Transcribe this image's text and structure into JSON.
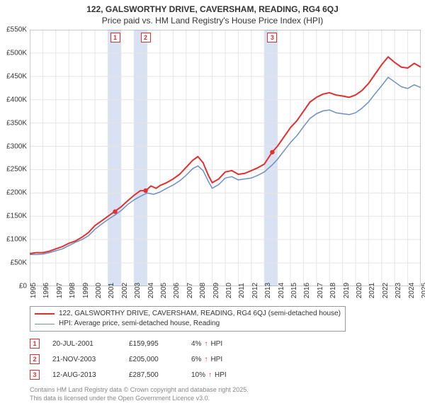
{
  "chart": {
    "type": "line",
    "title_line1": "122, GALSWORTHY DRIVE, CAVERSHAM, READING, RG4 6QJ",
    "title_line2": "Price paid vs. HM Land Registry's House Price Index (HPI)",
    "title_fontsize": 12,
    "background_color": "#ffffff",
    "grid_color": "#e5e5e5",
    "highlight_band_color": "#d9e2f2",
    "axis_text_color": "#333333",
    "y": {
      "min": 0,
      "max": 550000,
      "step": 50000,
      "labels": [
        "£0",
        "£50K",
        "£100K",
        "£150K",
        "£200K",
        "£250K",
        "£300K",
        "£350K",
        "£400K",
        "£450K",
        "£500K",
        "£550K"
      ]
    },
    "x": {
      "min": 1995,
      "max": 2025,
      "labels": [
        "1995",
        "1996",
        "1997",
        "1998",
        "1999",
        "2000",
        "2001",
        "2002",
        "2003",
        "2004",
        "2005",
        "2006",
        "2007",
        "2008",
        "2009",
        "2010",
        "2011",
        "2012",
        "2013",
        "2014",
        "2015",
        "2016",
        "2017",
        "2018",
        "2019",
        "2020",
        "2021",
        "2022",
        "2023",
        "2024",
        "2025"
      ]
    },
    "highlight_years": [
      2001,
      2003,
      2013
    ],
    "series": [
      {
        "name": "122, GALSWORTHY DRIVE, CAVERSHAM, READING, RG4 6QJ (semi-detached house)",
        "color": "#e03030",
        "line_width": 2,
        "points": [
          [
            1995.0,
            70000
          ],
          [
            1995.5,
            72000
          ],
          [
            1996.0,
            72000
          ],
          [
            1996.5,
            75000
          ],
          [
            1997.0,
            80000
          ],
          [
            1997.5,
            85000
          ],
          [
            1998.0,
            92000
          ],
          [
            1998.5,
            97000
          ],
          [
            1999.0,
            105000
          ],
          [
            1999.5,
            115000
          ],
          [
            2000.0,
            130000
          ],
          [
            2000.5,
            140000
          ],
          [
            2001.0,
            150000
          ],
          [
            2001.5,
            160000
          ],
          [
            2002.0,
            170000
          ],
          [
            2002.5,
            183000
          ],
          [
            2003.0,
            195000
          ],
          [
            2003.5,
            205000
          ],
          [
            2003.9,
            205000
          ],
          [
            2004.3,
            215000
          ],
          [
            2004.7,
            210000
          ],
          [
            2005.0,
            216000
          ],
          [
            2005.5,
            222000
          ],
          [
            2006.0,
            230000
          ],
          [
            2006.5,
            240000
          ],
          [
            2007.0,
            255000
          ],
          [
            2007.5,
            270000
          ],
          [
            2007.9,
            278000
          ],
          [
            2008.3,
            265000
          ],
          [
            2008.7,
            238000
          ],
          [
            2009.0,
            222000
          ],
          [
            2009.5,
            230000
          ],
          [
            2010.0,
            245000
          ],
          [
            2010.5,
            248000
          ],
          [
            2011.0,
            240000
          ],
          [
            2011.5,
            242000
          ],
          [
            2012.0,
            248000
          ],
          [
            2012.5,
            254000
          ],
          [
            2013.0,
            262000
          ],
          [
            2013.6,
            287500
          ],
          [
            2014.0,
            300000
          ],
          [
            2014.5,
            320000
          ],
          [
            2015.0,
            340000
          ],
          [
            2015.5,
            355000
          ],
          [
            2016.0,
            375000
          ],
          [
            2016.5,
            395000
          ],
          [
            2017.0,
            405000
          ],
          [
            2017.5,
            412000
          ],
          [
            2018.0,
            415000
          ],
          [
            2018.5,
            410000
          ],
          [
            2019.0,
            408000
          ],
          [
            2019.5,
            405000
          ],
          [
            2020.0,
            410000
          ],
          [
            2020.5,
            420000
          ],
          [
            2021.0,
            435000
          ],
          [
            2021.5,
            455000
          ],
          [
            2022.0,
            475000
          ],
          [
            2022.5,
            492000
          ],
          [
            2023.0,
            480000
          ],
          [
            2023.5,
            470000
          ],
          [
            2024.0,
            468000
          ],
          [
            2024.5,
            478000
          ],
          [
            2025.0,
            470000
          ]
        ]
      },
      {
        "name": "HPI: Average price, semi-detached house, Reading",
        "color": "#6b8fc7",
        "line_width": 1.5,
        "points": [
          [
            1995.0,
            68000
          ],
          [
            1995.5,
            68000
          ],
          [
            1996.0,
            69000
          ],
          [
            1996.5,
            72000
          ],
          [
            1997.0,
            76000
          ],
          [
            1997.5,
            80000
          ],
          [
            1998.0,
            87000
          ],
          [
            1998.5,
            94000
          ],
          [
            1999.0,
            100000
          ],
          [
            1999.5,
            108000
          ],
          [
            2000.0,
            122000
          ],
          [
            2000.5,
            133000
          ],
          [
            2001.0,
            143000
          ],
          [
            2001.5,
            152000
          ],
          [
            2002.0,
            162000
          ],
          [
            2002.5,
            175000
          ],
          [
            2003.0,
            185000
          ],
          [
            2003.5,
            193000
          ],
          [
            2004.0,
            200000
          ],
          [
            2004.5,
            197000
          ],
          [
            2005.0,
            202000
          ],
          [
            2005.5,
            210000
          ],
          [
            2006.0,
            217000
          ],
          [
            2006.5,
            226000
          ],
          [
            2007.0,
            238000
          ],
          [
            2007.5,
            252000
          ],
          [
            2007.9,
            258000
          ],
          [
            2008.3,
            248000
          ],
          [
            2008.7,
            225000
          ],
          [
            2009.0,
            210000
          ],
          [
            2009.5,
            218000
          ],
          [
            2010.0,
            232000
          ],
          [
            2010.5,
            235000
          ],
          [
            2011.0,
            228000
          ],
          [
            2011.5,
            230000
          ],
          [
            2012.0,
            232000
          ],
          [
            2012.5,
            238000
          ],
          [
            2013.0,
            245000
          ],
          [
            2013.6,
            260000
          ],
          [
            2014.0,
            272000
          ],
          [
            2014.5,
            290000
          ],
          [
            2015.0,
            308000
          ],
          [
            2015.5,
            323000
          ],
          [
            2016.0,
            342000
          ],
          [
            2016.5,
            360000
          ],
          [
            2017.0,
            370000
          ],
          [
            2017.5,
            376000
          ],
          [
            2018.0,
            378000
          ],
          [
            2018.5,
            372000
          ],
          [
            2019.0,
            370000
          ],
          [
            2019.5,
            368000
          ],
          [
            2020.0,
            372000
          ],
          [
            2020.5,
            382000
          ],
          [
            2021.0,
            395000
          ],
          [
            2021.5,
            413000
          ],
          [
            2022.0,
            430000
          ],
          [
            2022.5,
            448000
          ],
          [
            2023.0,
            438000
          ],
          [
            2023.5,
            428000
          ],
          [
            2024.0,
            424000
          ],
          [
            2024.5,
            432000
          ],
          [
            2025.0,
            426000
          ]
        ]
      }
    ],
    "sales": [
      {
        "n": "1",
        "year": 2001.55,
        "date": "20-JUL-2001",
        "price": "£159,995",
        "diff_pct": "4%",
        "diff_dir": "↑",
        "diff_label": "HPI",
        "marker_color": "#e03030"
      },
      {
        "n": "2",
        "year": 2003.89,
        "date": "21-NOV-2003",
        "price": "£205,000",
        "diff_pct": "6%",
        "diff_dir": "↑",
        "diff_label": "HPI",
        "marker_color": "#e03030"
      },
      {
        "n": "3",
        "year": 2013.61,
        "date": "12-AUG-2013",
        "price": "£287,500",
        "diff_pct": "10%",
        "diff_dir": "↑",
        "diff_label": "HPI",
        "marker_color": "#e03030"
      }
    ]
  },
  "attribution": {
    "line1": "Contains HM Land Registry data © Crown copyright and database right 2025.",
    "line2": "This data is licensed under the Open Government Licence v3.0."
  }
}
